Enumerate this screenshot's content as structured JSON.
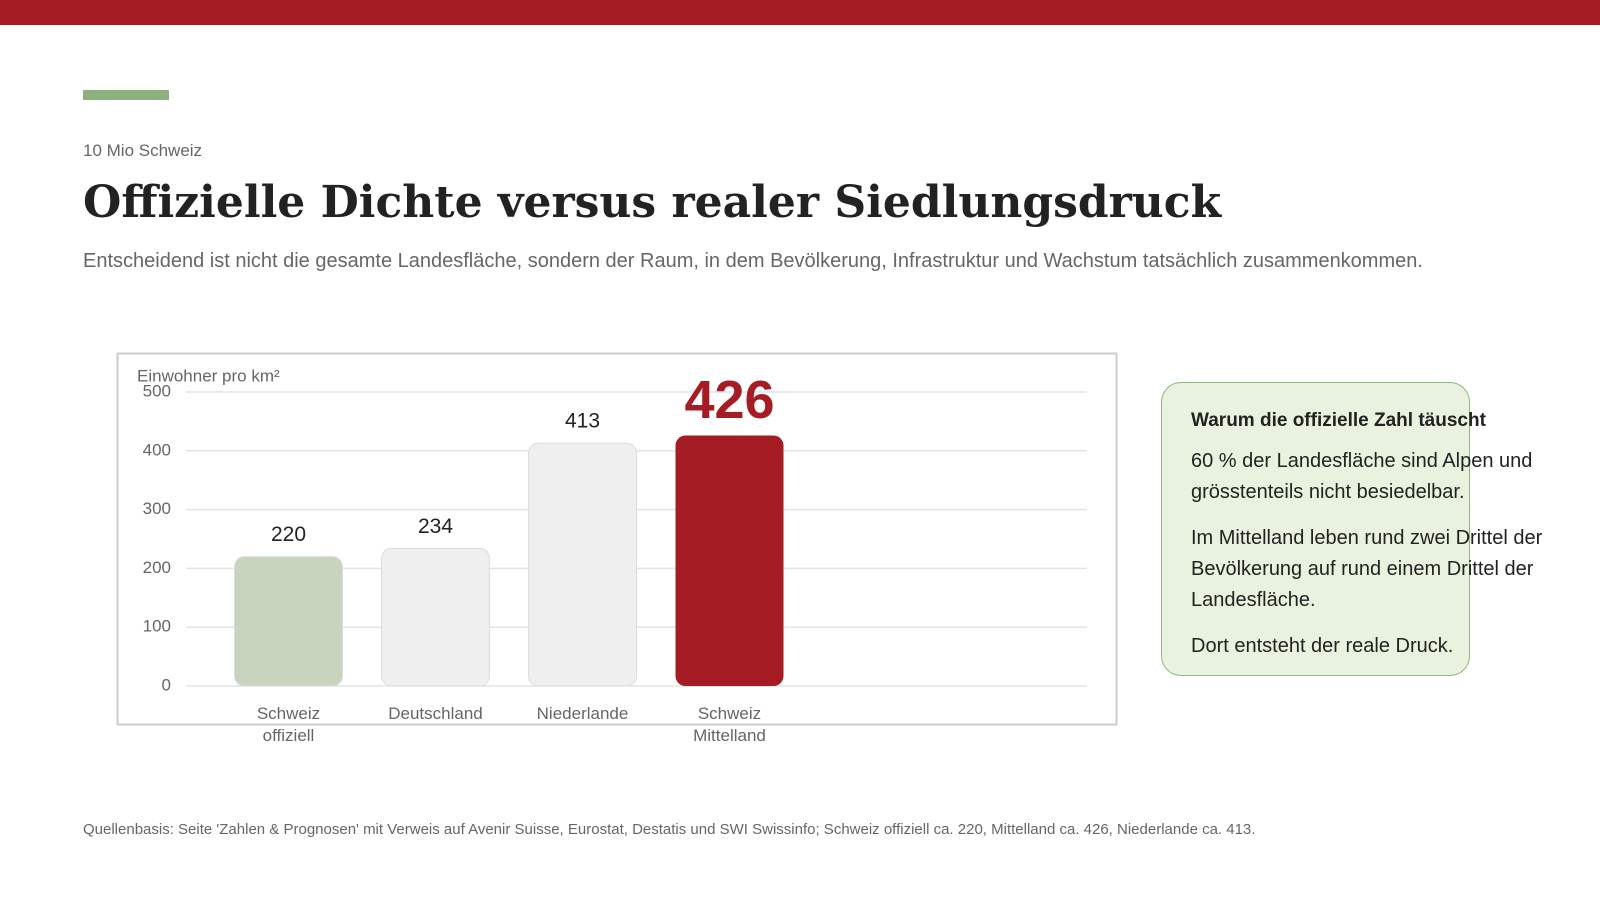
{
  "header": {
    "kicker": "10 Mio Schweiz",
    "title": "Offizielle Dichte versus realer Siedlungsdruck",
    "subtitle": "Entscheidend ist nicht die gesamte Landesfläche, sondern der Raum, in dem Bevölkerung, Infrastruktur und Wachstum tatsächlich zusammenkommen."
  },
  "chart_data": {
    "type": "bar",
    "y_label": "Einwohner pro km²",
    "categories": [
      "Schweiz offiziell",
      "Deutschland",
      "Niederlande",
      "Schweiz Mittelland"
    ],
    "values": [
      220,
      234,
      413,
      426
    ],
    "colors": [
      "#c8d4be",
      "#efefef",
      "#efefef",
      "#a51c24"
    ],
    "ylim": [
      0,
      500
    ],
    "yticks": [
      0,
      100,
      200,
      300,
      400,
      500
    ],
    "grid": true
  },
  "sidebar": {
    "title": "Warum die offizielle Zahl täuscht",
    "paragraphs": [
      "60 % der Landesfläche sind Alpen und grösstenteils nicht besiedelbar.",
      "Im Mittelland leben rund zwei Drittel der Bevölkerung auf rund einem Drittel der Landesfläche.",
      "Dort entsteht der reale Druck."
    ]
  },
  "footer": {
    "source": "Quellenbasis: Seite 'Zahlen & Prognosen' mit Verweis auf Avenir Suisse, Eurostat, Destatis und SWI Swissinfo; Schweiz offiziell ca. 220, Mittelland ca. 426, Niederlande ca. 413."
  }
}
